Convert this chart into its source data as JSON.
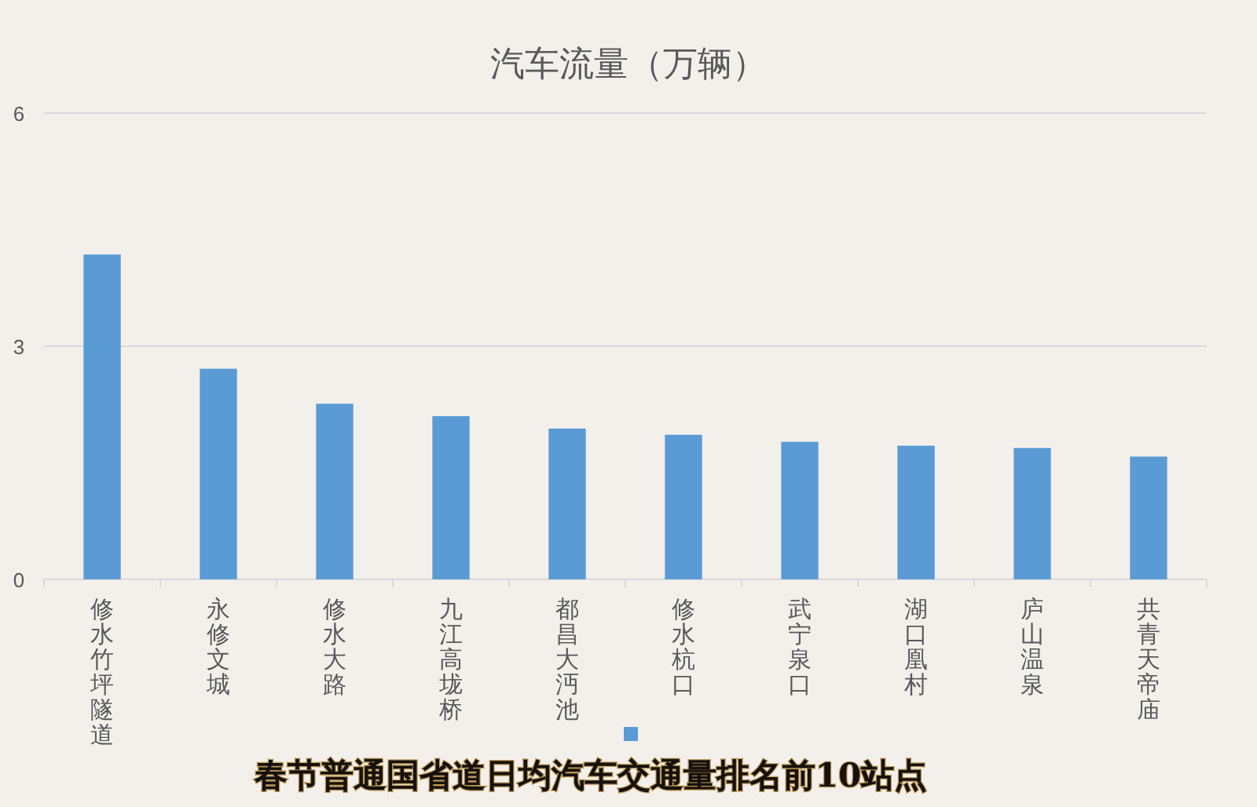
{
  "chart_data": {
    "type": "bar",
    "title": "汽车流量（万辆）",
    "categories": [
      "修水竹坪隧道",
      "永修文城",
      "修水大路",
      "九江高垅桥",
      "都昌大沔池",
      "修水杭口",
      "武宁泉口",
      "湖口凰村",
      "庐山温泉",
      "共青天帝庙"
    ],
    "values": [
      4.18,
      2.71,
      2.26,
      2.1,
      1.94,
      1.86,
      1.77,
      1.72,
      1.69,
      1.58
    ],
    "color": "#5b9bd5",
    "ylim": [
      0,
      6
    ],
    "yticks": [
      0,
      3,
      6
    ],
    "grid": "y",
    "annotations": [
      "春节普通国省道日均汽车交通量排名前10站点"
    ]
  }
}
